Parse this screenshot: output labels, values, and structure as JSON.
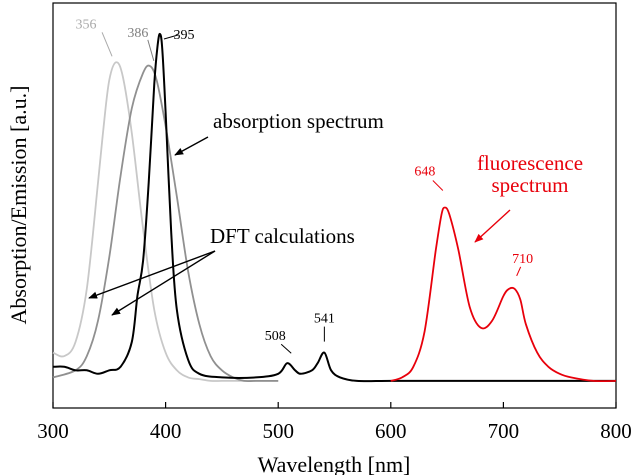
{
  "chart_data": {
    "type": "line",
    "xlabel": "Wavelength [nm]",
    "ylabel": "Absorption/Emission [a.u.]",
    "xlim": [
      300,
      800
    ],
    "ylim": [
      0,
      1
    ],
    "x_ticks": [
      "300",
      "400",
      "500",
      "600",
      "700",
      "800"
    ],
    "y_tick_labels": false,
    "grid": false,
    "series": [
      {
        "color": "#c8c8c8",
        "x": [
          300,
          310,
          320,
          330,
          340,
          345,
          350,
          356,
          362,
          370,
          380,
          390,
          400,
          410,
          420,
          430,
          440,
          450,
          460,
          480,
          500
        ],
        "y": [
          0.1,
          0.09,
          0.13,
          0.28,
          0.58,
          0.74,
          0.87,
          0.92,
          0.88,
          0.72,
          0.45,
          0.22,
          0.1,
          0.05,
          0.03,
          0.025,
          0.02,
          0.02,
          0.02,
          0.02,
          0.02
        ]
      },
      {
        "color": "#909090",
        "x": [
          300,
          320,
          330,
          340,
          350,
          360,
          370,
          380,
          386,
          392,
          400,
          410,
          420,
          430,
          440,
          450,
          460,
          470,
          480,
          500
        ],
        "y": [
          0.03,
          0.05,
          0.09,
          0.19,
          0.37,
          0.6,
          0.79,
          0.89,
          0.91,
          0.87,
          0.74,
          0.54,
          0.33,
          0.18,
          0.09,
          0.05,
          0.03,
          0.02,
          0.02,
          0.02
        ]
      },
      {
        "color": "#000000",
        "x": [
          300,
          310,
          320,
          330,
          340,
          350,
          360,
          370,
          375,
          380,
          385,
          390,
          393,
          395,
          397,
          400,
          405,
          410,
          420,
          430,
          450,
          480,
          500,
          508,
          515,
          520,
          530,
          535,
          541,
          547,
          555,
          570,
          600,
          650,
          700,
          750,
          800
        ],
        "y": [
          0.06,
          0.06,
          0.05,
          0.05,
          0.04,
          0.05,
          0.06,
          0.13,
          0.26,
          0.36,
          0.58,
          0.86,
          0.97,
          1.0,
          0.96,
          0.78,
          0.44,
          0.22,
          0.08,
          0.04,
          0.03,
          0.03,
          0.04,
          0.07,
          0.05,
          0.04,
          0.05,
          0.07,
          0.1,
          0.05,
          0.03,
          0.02,
          0.02,
          0.02,
          0.02,
          0.02,
          0.02
        ]
      },
      {
        "color": "#e8000b",
        "x": [
          600,
          610,
          620,
          630,
          640,
          645,
          648,
          652,
          660,
          670,
          680,
          690,
          700,
          705,
          710,
          715,
          720,
          730,
          740,
          750,
          760,
          780,
          800
        ],
        "y": [
          0.02,
          0.03,
          0.06,
          0.16,
          0.39,
          0.49,
          0.51,
          0.49,
          0.39,
          0.23,
          0.17,
          0.19,
          0.26,
          0.28,
          0.28,
          0.25,
          0.18,
          0.1,
          0.06,
          0.04,
          0.03,
          0.02,
          0.02
        ]
      }
    ],
    "peak_labels": [
      {
        "text": "356",
        "x": 356,
        "y": 0.92,
        "color": "#aaaaaa"
      },
      {
        "text": "386",
        "x": 386,
        "y": 0.91,
        "color": "#808080"
      },
      {
        "text": "395",
        "x": 395,
        "y": 1.0,
        "color": "#000000"
      },
      {
        "text": "508",
        "x": 508,
        "y": 0.07,
        "color": "#000000"
      },
      {
        "text": "541",
        "x": 541,
        "y": 0.1,
        "color": "#000000"
      },
      {
        "text": "648",
        "x": 648,
        "y": 0.51,
        "color": "#e8000b"
      },
      {
        "text": "710",
        "x": 710,
        "y": 0.28,
        "color": "#e8000b"
      }
    ],
    "annotations": [
      {
        "lines": [
          "absorption spectrum"
        ],
        "color": "#000000"
      },
      {
        "lines": [
          "fluorescence",
          "spectrum"
        ],
        "color": "#e8000b"
      },
      {
        "lines": [
          "DFT calculations"
        ],
        "color": "#000000"
      }
    ]
  }
}
